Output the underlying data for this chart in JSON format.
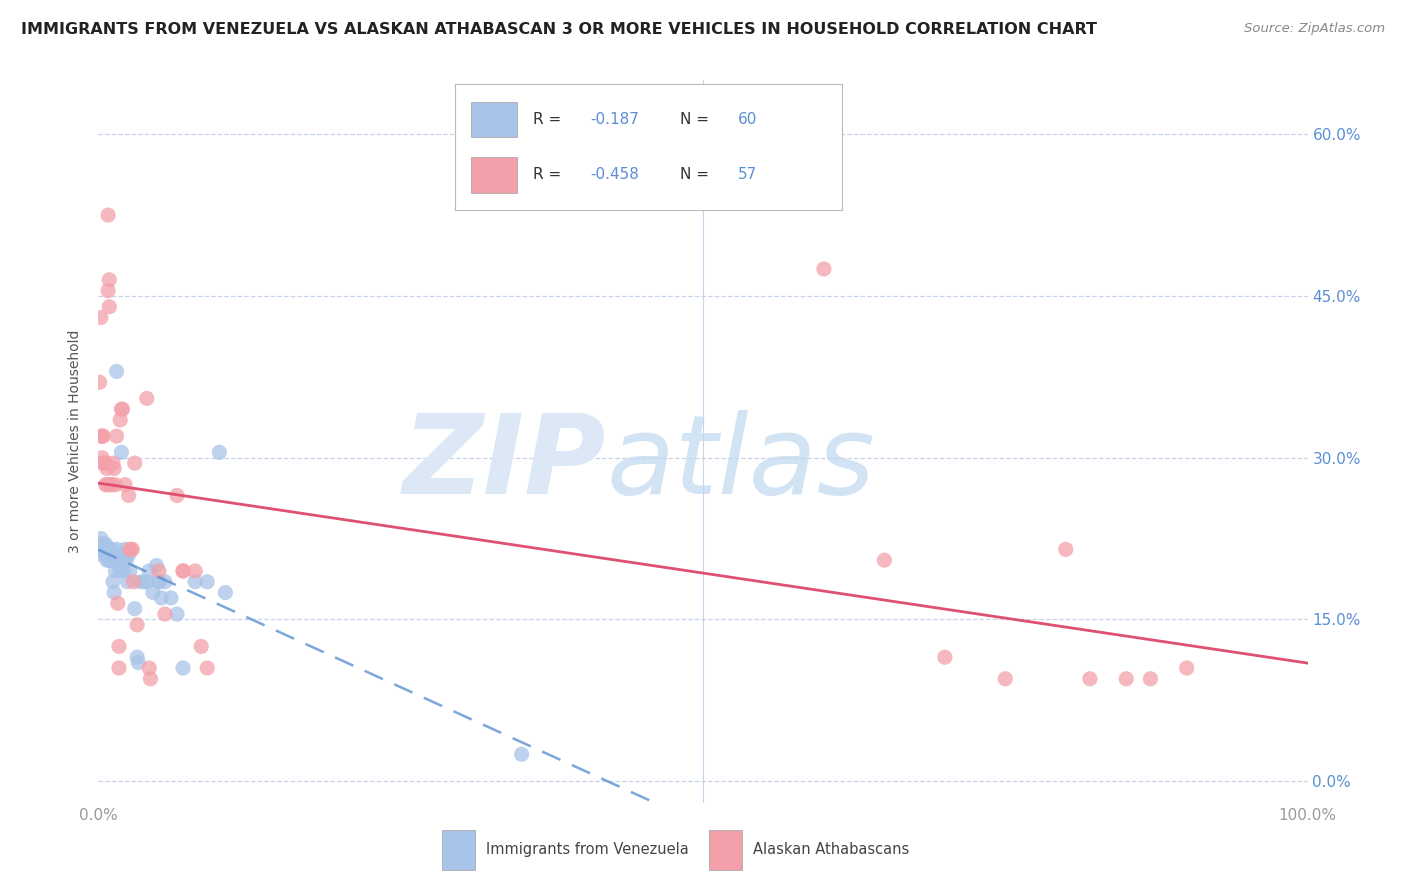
{
  "title": "IMMIGRANTS FROM VENEZUELA VS ALASKAN ATHABASCAN 3 OR MORE VEHICLES IN HOUSEHOLD CORRELATION CHART",
  "source": "Source: ZipAtlas.com",
  "ylabel": "3 or more Vehicles in Household",
  "ytick_values": [
    0.0,
    0.15,
    0.3,
    0.45,
    0.6
  ],
  "legend_blue_r": "-0.187",
  "legend_blue_n": "60",
  "legend_pink_r": "-0.458",
  "legend_pink_n": "57",
  "blue_color": "#a8c4e8",
  "pink_color": "#f4a0aa",
  "blue_line_color": "#5b8fd4",
  "pink_line_color": "#e05070",
  "right_axis_color": "#5b8fd4",
  "background_color": "#ffffff",
  "grid_color": "#c8d4e8",
  "xlim": [
    0.0,
    1.0
  ],
  "ylim": [
    -0.02,
    0.65
  ],
  "blue_scatter": [
    [
      0.002,
      0.225
    ],
    [
      0.003,
      0.22
    ],
    [
      0.004,
      0.22
    ],
    [
      0.005,
      0.215
    ],
    [
      0.005,
      0.215
    ],
    [
      0.006,
      0.22
    ],
    [
      0.006,
      0.215
    ],
    [
      0.007,
      0.215
    ],
    [
      0.007,
      0.21
    ],
    [
      0.008,
      0.21
    ],
    [
      0.008,
      0.215
    ],
    [
      0.009,
      0.205
    ],
    [
      0.009,
      0.205
    ],
    [
      0.01,
      0.21
    ],
    [
      0.01,
      0.21
    ],
    [
      0.011,
      0.205
    ],
    [
      0.011,
      0.215
    ],
    [
      0.012,
      0.205
    ],
    [
      0.012,
      0.185
    ],
    [
      0.013,
      0.175
    ],
    [
      0.014,
      0.195
    ],
    [
      0.015,
      0.38
    ],
    [
      0.015,
      0.215
    ],
    [
      0.016,
      0.205
    ],
    [
      0.017,
      0.2
    ],
    [
      0.018,
      0.21
    ],
    [
      0.018,
      0.195
    ],
    [
      0.019,
      0.305
    ],
    [
      0.02,
      0.205
    ],
    [
      0.021,
      0.195
    ],
    [
      0.022,
      0.215
    ],
    [
      0.023,
      0.205
    ],
    [
      0.024,
      0.185
    ],
    [
      0.025,
      0.21
    ],
    [
      0.026,
      0.195
    ],
    [
      0.03,
      0.16
    ],
    [
      0.032,
      0.115
    ],
    [
      0.033,
      0.11
    ],
    [
      0.035,
      0.185
    ],
    [
      0.038,
      0.185
    ],
    [
      0.04,
      0.185
    ],
    [
      0.042,
      0.195
    ],
    [
      0.045,
      0.175
    ],
    [
      0.048,
      0.2
    ],
    [
      0.05,
      0.185
    ],
    [
      0.05,
      0.185
    ],
    [
      0.052,
      0.17
    ],
    [
      0.055,
      0.185
    ],
    [
      0.06,
      0.17
    ],
    [
      0.065,
      0.155
    ],
    [
      0.07,
      0.105
    ],
    [
      0.08,
      0.185
    ],
    [
      0.09,
      0.185
    ],
    [
      0.1,
      0.305
    ],
    [
      0.105,
      0.175
    ],
    [
      0.35,
      0.025
    ],
    [
      0.003,
      0.21
    ],
    [
      0.004,
      0.215
    ],
    [
      0.006,
      0.21
    ],
    [
      0.007,
      0.205
    ]
  ],
  "pink_scatter": [
    [
      0.001,
      0.37
    ],
    [
      0.002,
      0.43
    ],
    [
      0.002,
      0.32
    ],
    [
      0.003,
      0.3
    ],
    [
      0.003,
      0.32
    ],
    [
      0.004,
      0.32
    ],
    [
      0.004,
      0.295
    ],
    [
      0.005,
      0.295
    ],
    [
      0.005,
      0.295
    ],
    [
      0.006,
      0.295
    ],
    [
      0.006,
      0.275
    ],
    [
      0.007,
      0.29
    ],
    [
      0.007,
      0.275
    ],
    [
      0.008,
      0.525
    ],
    [
      0.008,
      0.455
    ],
    [
      0.009,
      0.465
    ],
    [
      0.009,
      0.44
    ],
    [
      0.01,
      0.275
    ],
    [
      0.011,
      0.275
    ],
    [
      0.012,
      0.295
    ],
    [
      0.013,
      0.29
    ],
    [
      0.014,
      0.275
    ],
    [
      0.015,
      0.32
    ],
    [
      0.016,
      0.165
    ],
    [
      0.017,
      0.125
    ],
    [
      0.017,
      0.105
    ],
    [
      0.018,
      0.335
    ],
    [
      0.019,
      0.345
    ],
    [
      0.02,
      0.345
    ],
    [
      0.022,
      0.275
    ],
    [
      0.025,
      0.265
    ],
    [
      0.026,
      0.215
    ],
    [
      0.027,
      0.215
    ],
    [
      0.028,
      0.215
    ],
    [
      0.029,
      0.185
    ],
    [
      0.03,
      0.295
    ],
    [
      0.032,
      0.145
    ],
    [
      0.04,
      0.355
    ],
    [
      0.042,
      0.105
    ],
    [
      0.043,
      0.095
    ],
    [
      0.05,
      0.195
    ],
    [
      0.055,
      0.155
    ],
    [
      0.065,
      0.265
    ],
    [
      0.07,
      0.195
    ],
    [
      0.07,
      0.195
    ],
    [
      0.08,
      0.195
    ],
    [
      0.085,
      0.125
    ],
    [
      0.09,
      0.105
    ],
    [
      0.6,
      0.475
    ],
    [
      0.65,
      0.205
    ],
    [
      0.7,
      0.115
    ],
    [
      0.75,
      0.095
    ],
    [
      0.8,
      0.215
    ],
    [
      0.82,
      0.095
    ],
    [
      0.85,
      0.095
    ],
    [
      0.87,
      0.095
    ],
    [
      0.9,
      0.105
    ]
  ]
}
